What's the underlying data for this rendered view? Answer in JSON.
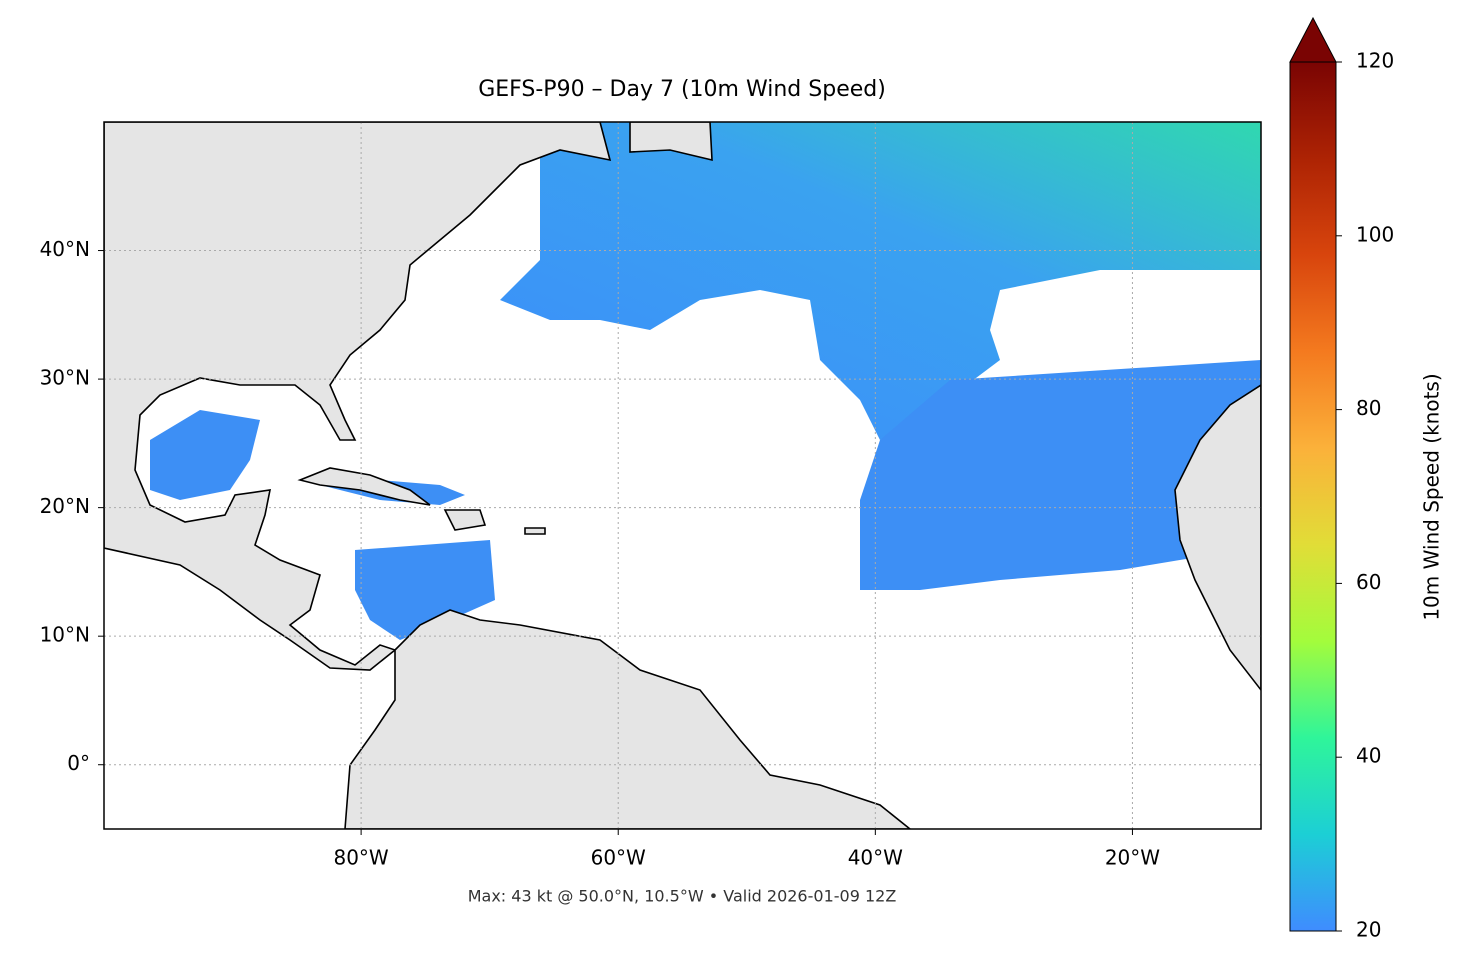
{
  "chart_data": {
    "type": "map",
    "title": "GEFS-P90 – Day 7 (10m Wind Speed)",
    "footnote": "Max: 43 kt @ 50.0°N, 10.5°W • Valid 2026-01-09 12Z",
    "xlim": [
      -100,
      -10
    ],
    "ylim": [
      -5,
      50
    ],
    "xticks": [
      {
        "value": -80,
        "label": "80°W"
      },
      {
        "value": -60,
        "label": "60°W"
      },
      {
        "value": -40,
        "label": "40°W"
      },
      {
        "value": -20,
        "label": "20°W"
      }
    ],
    "yticks": [
      {
        "value": 0,
        "label": "0°"
      },
      {
        "value": 10,
        "label": "10°N"
      },
      {
        "value": 20,
        "label": "20°N"
      },
      {
        "value": 30,
        "label": "30°N"
      },
      {
        "value": 40,
        "label": "40°N"
      }
    ],
    "grid": true,
    "colorbar": {
      "label": "10m Wind Speed (knots)",
      "lim": [
        20,
        120
      ],
      "ticks": [
        20,
        40,
        60,
        80,
        100,
        120
      ],
      "colors": [
        "#3f8cff",
        "#1ccfd5",
        "#2ff59a",
        "#a3fc3c",
        "#e1dd37",
        "#fbb13a",
        "#f47a1f",
        "#d8450d",
        "#ad2304",
        "#7a0403"
      ]
    }
  }
}
